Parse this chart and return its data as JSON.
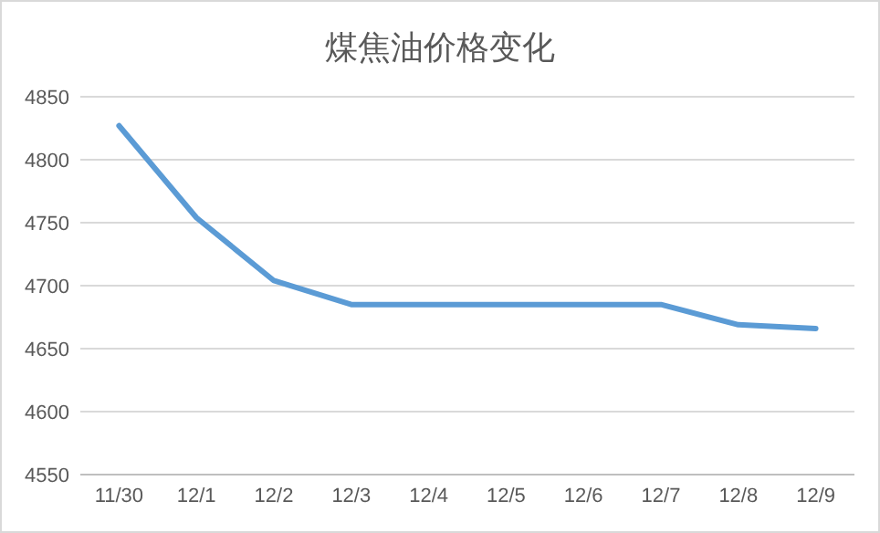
{
  "chart_data": {
    "type": "line",
    "title": "煤焦油价格变化",
    "categories": [
      "11/30",
      "12/1",
      "12/2",
      "12/3",
      "12/4",
      "12/5",
      "12/6",
      "12/7",
      "12/8",
      "12/9"
    ],
    "series": [
      {
        "color": "#5b9bd5",
        "values": [
          4827,
          4754,
          4704,
          4685,
          4685,
          4685,
          4685,
          4685,
          4669,
          4666
        ]
      }
    ],
    "ylim": [
      4550,
      4850
    ],
    "yticks": [
      4550,
      4600,
      4650,
      4700,
      4750,
      4800,
      4850
    ],
    "grid": "y",
    "marker": "none",
    "line_style": "solid"
  }
}
